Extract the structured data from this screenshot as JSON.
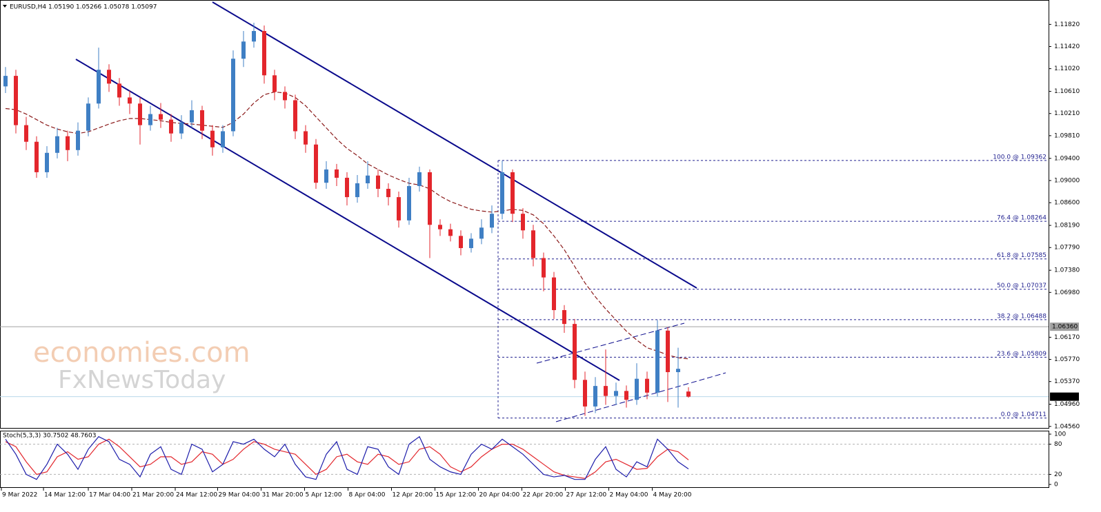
{
  "chart_data": {
    "type": "candlestick",
    "title": "EURUSD,H4  1.05190 1.05266 1.05078 1.05097",
    "ylim": [
      1.0452,
      1.1226
    ],
    "yticks": [
      {
        "value": 1.1182,
        "label": "1.11820"
      },
      {
        "value": 1.1142,
        "label": "1.11420"
      },
      {
        "value": 1.1102,
        "label": "1.11020"
      },
      {
        "value": 1.1061,
        "label": "1.10610"
      },
      {
        "value": 1.1021,
        "label": "1.10210"
      },
      {
        "value": 1.0981,
        "label": "1.09810"
      },
      {
        "value": 1.094,
        "label": "1.09400"
      },
      {
        "value": 1.09,
        "label": "1.09000"
      },
      {
        "value": 1.086,
        "label": "1.08600"
      },
      {
        "value": 1.0819,
        "label": "1.08190"
      },
      {
        "value": 1.0779,
        "label": "1.07790"
      },
      {
        "value": 1.0738,
        "label": "1.07380"
      },
      {
        "value": 1.0698,
        "label": "1.06980"
      },
      {
        "value": 1.0617,
        "label": "1.06170"
      },
      {
        "value": 1.0577,
        "label": "1.05770"
      },
      {
        "value": 1.0537,
        "label": "1.05370"
      },
      {
        "value": 1.0496,
        "label": "1.04960"
      },
      {
        "value": 1.0456,
        "label": "1.04560"
      }
    ],
    "xticks": [
      {
        "value": -0.4,
        "label": "9 Mar 2022"
      },
      {
        "value": 3.67,
        "label": "14 Mar 12:00"
      },
      {
        "value": 8,
        "label": "17 Mar 04:00"
      },
      {
        "value": 12.2,
        "label": "21 Mar 20:00"
      },
      {
        "value": 16.4,
        "label": "24 Mar 12:00"
      },
      {
        "value": 20.5,
        "label": "29 Mar 04:00"
      },
      {
        "value": 24.7,
        "label": "31 Mar 20:00"
      },
      {
        "value": 28.9,
        "label": "5 Apr 12:00"
      },
      {
        "value": 33.1,
        "label": "8 Apr 04:00"
      },
      {
        "value": 37.3,
        "label": "12 Apr 20:00"
      },
      {
        "value": 41.5,
        "label": "15 Apr 12:00"
      },
      {
        "value": 45.7,
        "label": "20 Apr 04:00"
      },
      {
        "value": 49.9,
        "label": "22 Apr 20:00"
      },
      {
        "value": 54.1,
        "label": "27 Apr 12:00"
      },
      {
        "value": 58.3,
        "label": "2 May 04:00"
      },
      {
        "value": 62.5,
        "label": "4 May 20:00"
      }
    ],
    "up_color": "#3f7fc4",
    "down_color": "#e3262c",
    "open": [
      1.107,
      1.1089,
      1.1,
      1.097,
      1.0915,
      1.095,
      1.098,
      1.0955,
      1.099,
      1.1039,
      1.11,
      1.1075,
      1.105,
      1.1039,
      1.1,
      1.102,
      1.101,
      1.0985,
      1.1005,
      1.1027,
      1.099,
      1.096,
      1.0989,
      1.112,
      1.1151,
      1.117,
      1.109,
      1.106,
      1.1045,
      1.0989,
      1.0965,
      1.0896,
      1.092,
      1.0905,
      1.087,
      1.0895,
      1.0909,
      1.0885,
      1.087,
      1.0828,
      1.089,
      1.0915,
      1.082,
      1.0812,
      1.08,
      1.0778,
      1.0795,
      1.0815,
      1.084,
      1.0915,
      1.084,
      1.081,
      1.076,
      1.0725,
      1.0666,
      1.0641,
      1.054,
      1.0492,
      1.0529,
      1.0511,
      1.052,
      1.0504,
      1.0542,
      1.0517,
      1.0629,
      1.0554,
      1.0519
    ],
    "high": [
      1.1105,
      1.11,
      1.1015,
      1.098,
      1.0962,
      1.0995,
      1.099,
      1.1005,
      1.105,
      1.114,
      1.111,
      1.1085,
      1.1062,
      1.105,
      1.1035,
      1.104,
      1.102,
      1.1018,
      1.1045,
      1.1035,
      1.1,
      1.1,
      1.1135,
      1.117,
      1.1185,
      1.118,
      1.11,
      1.107,
      1.1055,
      1.1,
      1.0975,
      1.0935,
      1.093,
      1.0915,
      1.091,
      1.0935,
      1.092,
      1.0895,
      1.088,
      1.0905,
      1.0925,
      1.092,
      1.083,
      1.0822,
      1.081,
      1.0805,
      1.083,
      1.0855,
      1.0936,
      1.092,
      1.085,
      1.082,
      1.077,
      1.0735,
      1.0675,
      1.065,
      1.0555,
      1.0545,
      1.0595,
      1.0535,
      1.053,
      1.057,
      1.0555,
      1.0648,
      1.0635,
      1.0598,
      1.05266
    ],
    "low": [
      1.1058,
      1.0985,
      1.0955,
      1.0905,
      1.0905,
      1.094,
      1.0935,
      1.0945,
      1.098,
      1.103,
      1.106,
      1.1035,
      1.102,
      1.0965,
      1.099,
      1.0995,
      1.097,
      1.0975,
      1.0995,
      1.0975,
      1.0945,
      1.095,
      1.098,
      1.1105,
      1.114,
      1.1075,
      1.1045,
      1.103,
      1.0975,
      1.095,
      1.0885,
      1.0885,
      1.089,
      1.0855,
      1.086,
      1.0885,
      1.087,
      1.0855,
      1.0815,
      1.082,
      1.088,
      1.076,
      1.08,
      1.079,
      1.0765,
      1.077,
      1.0785,
      1.0805,
      1.083,
      1.0825,
      1.0795,
      1.0745,
      1.07,
      1.065,
      1.0625,
      1.0525,
      1.0475,
      1.048,
      1.0495,
      1.0495,
      1.049,
      1.0495,
      1.0505,
      1.051,
      1.05,
      1.049,
      1.05078
    ],
    "close": [
      1.1089,
      1.1,
      1.097,
      1.0915,
      1.095,
      1.098,
      1.0955,
      1.099,
      1.1039,
      1.11,
      1.1075,
      1.105,
      1.1039,
      1.1,
      1.102,
      1.101,
      1.0985,
      1.1005,
      1.1027,
      1.099,
      1.096,
      1.0989,
      1.112,
      1.1151,
      1.117,
      1.109,
      1.106,
      1.1045,
      1.0989,
      1.0965,
      1.0896,
      1.092,
      1.0905,
      1.087,
      1.0895,
      1.0909,
      1.0885,
      1.087,
      1.0828,
      1.089,
      1.0915,
      1.082,
      1.0812,
      1.08,
      1.0778,
      1.0795,
      1.0815,
      1.084,
      1.0915,
      1.084,
      1.081,
      1.076,
      1.0725,
      1.0666,
      1.0641,
      1.054,
      1.0492,
      1.0529,
      1.0511,
      1.052,
      1.0504,
      1.0542,
      1.0517,
      1.0629,
      1.0554,
      1.056,
      1.05097
    ],
    "ma": {
      "color": "#8b1a1a",
      "values": [
        1.103,
        1.1028,
        1.102,
        1.101,
        1.1,
        1.0993,
        1.0988,
        1.0985,
        1.0988,
        1.0995,
        1.1002,
        1.1008,
        1.1012,
        1.1012,
        1.101,
        1.1008,
        1.1005,
        1.1003,
        1.1002,
        1.1,
        1.0998,
        1.0996,
        1.1005,
        1.102,
        1.104,
        1.1055,
        1.106,
        1.1058,
        1.105,
        1.1035,
        1.1015,
        1.0995,
        1.0975,
        1.0958,
        1.0945,
        1.093,
        1.092,
        1.091,
        1.0902,
        1.0895,
        1.0892,
        1.0885,
        1.0872,
        1.0862,
        1.0855,
        1.0848,
        1.0845,
        1.0843,
        1.0845,
        1.0848,
        1.0846,
        1.0838,
        1.0822,
        1.08,
        1.0775,
        1.0745,
        1.0715,
        1.069,
        1.0668,
        1.0648,
        1.0628,
        1.0612,
        1.0598,
        1.0592,
        1.0585,
        1.058,
        1.0578
      ]
    },
    "price_lines": [
      {
        "value": 1.0636,
        "label": "1.06360",
        "color": "#a0a0a0"
      },
      {
        "value": 1.05097,
        "label": "1.05097",
        "color": "#b9d8ea"
      }
    ],
    "fib_levels": [
      {
        "value": 1.09362,
        "label": "100.0 @ 1.09362"
      },
      {
        "value": 1.08264,
        "label": "76.4 @ 1.08264"
      },
      {
        "value": 1.07585,
        "label": "61.8 @ 1.07585"
      },
      {
        "value": 1.07037,
        "label": "50.0 @ 1.07037"
      },
      {
        "value": 1.06488,
        "label": "38.2 @ 1.06488"
      },
      {
        "value": 1.05809,
        "label": "23.6 @ 1.05809"
      },
      {
        "value": 1.04711,
        "label": "0.0 @ 1.04711"
      }
    ],
    "watermark": [
      "economies.com",
      "FxNewsToday"
    ],
    "stoch": {
      "label": "Stoch(5,3,3) 30.7502 48.7603",
      "ylim": [
        0,
        100
      ],
      "yticks": [
        100,
        80,
        20,
        0
      ],
      "levels": [
        80,
        20
      ],
      "main": {
        "color": "#1c1caa",
        "values": [
          90,
          60,
          20,
          10,
          40,
          80,
          60,
          30,
          70,
          95,
          85,
          50,
          40,
          15,
          60,
          75,
          30,
          20,
          80,
          70,
          25,
          40,
          85,
          80,
          90,
          70,
          55,
          80,
          40,
          15,
          10,
          60,
          85,
          30,
          20,
          75,
          70,
          35,
          20,
          80,
          95,
          50,
          35,
          25,
          20,
          60,
          80,
          70,
          90,
          75,
          60,
          40,
          20,
          15,
          18,
          10,
          10,
          50,
          75,
          30,
          15,
          45,
          35,
          90,
          70,
          45,
          30.7502
        ]
      },
      "signal": {
        "color": "#e3262c",
        "values": [
          85,
          75,
          45,
          20,
          25,
          55,
          65,
          50,
          55,
          80,
          90,
          75,
          55,
          35,
          40,
          55,
          55,
          40,
          45,
          65,
          60,
          40,
          50,
          70,
          85,
          80,
          70,
          65,
          60,
          40,
          20,
          30,
          55,
          60,
          45,
          40,
          60,
          55,
          40,
          45,
          70,
          75,
          60,
          35,
          25,
          35,
          55,
          70,
          80,
          80,
          70,
          55,
          40,
          25,
          18,
          15,
          12,
          25,
          45,
          50,
          40,
          30,
          32,
          55,
          70,
          65,
          48.7603
        ]
      }
    }
  }
}
